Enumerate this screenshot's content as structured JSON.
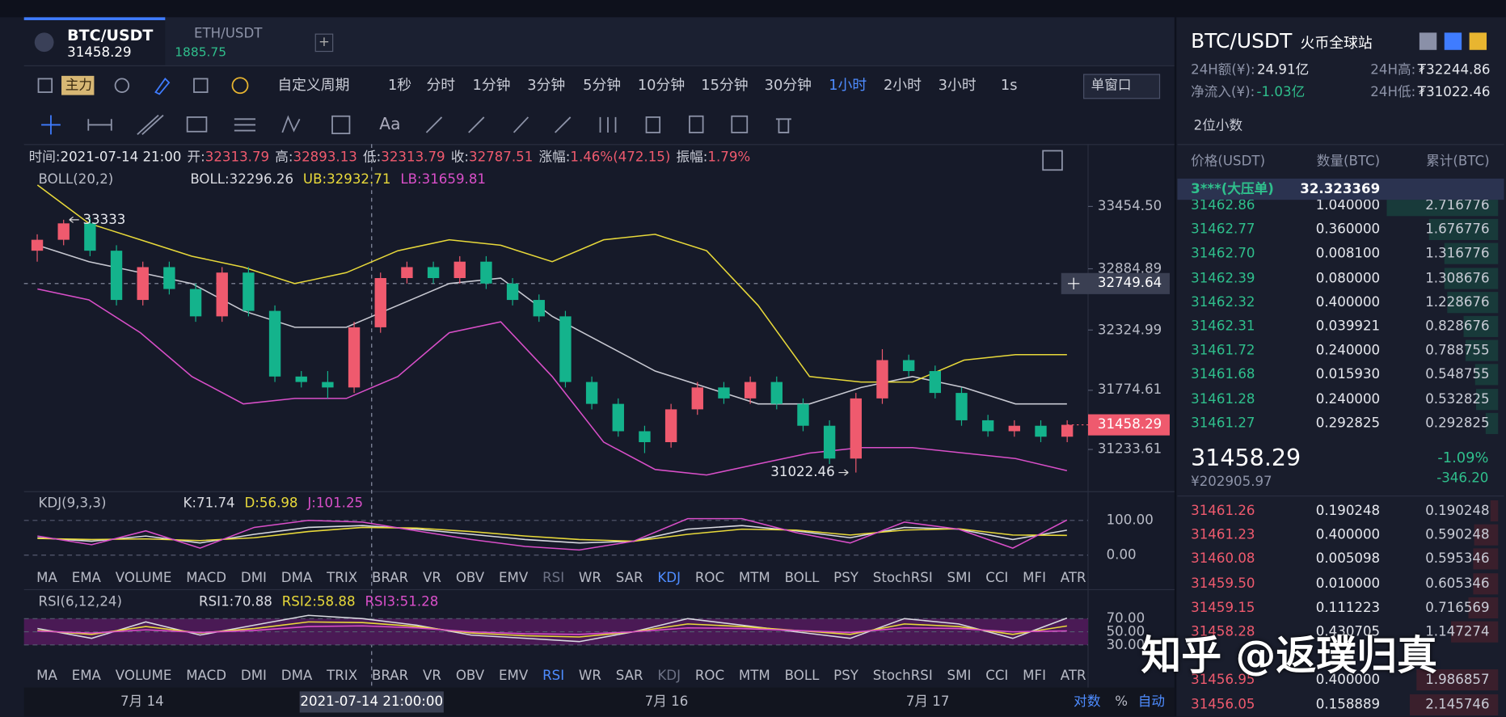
{
  "top_tabs": [
    {
      "symbol": "BTC/USDT",
      "price": "31458.29"
    },
    {
      "symbol": "ETH/USDT",
      "price": "1885.75"
    }
  ],
  "toolbar": {
    "main": "主力",
    "custom_period": "自定义周期",
    "periods": [
      "1秒",
      "分时",
      "1分钟",
      "3分钟",
      "5分钟",
      "10分钟",
      "15分钟",
      "30分钟",
      "1小时",
      "2小时",
      "3小时",
      "1s"
    ],
    "window": "单窗口"
  },
  "tools": {
    "text": "Aa"
  },
  "chart_data": [
    {
      "type": "candlestick",
      "info": [
        {
          "label": "时间:",
          "value": "2021-07-14 21:00"
        },
        {
          "label": "开:",
          "value": "32313.79"
        },
        {
          "label": "高:",
          "value": "32893.13"
        },
        {
          "label": "低:",
          "value": "32313.79"
        },
        {
          "label": "收:",
          "value": "32787.51"
        },
        {
          "label": "涨幅:",
          "value": "1.46%(472.15)"
        },
        {
          "label": "振幅:",
          "value": "1.79%"
        }
      ],
      "legend": {
        "title": "BOLL(20,2)",
        "items": [
          "BOLL:32296.26",
          "UB:32932.71",
          "LB:31659.81"
        ]
      },
      "up_color": "#ef5a6e",
      "down_color": "#14b38c",
      "open": [
        33050,
        33150,
        33300,
        33050,
        32600,
        32900,
        32700,
        32450,
        32850,
        32500,
        31900,
        31850,
        31800,
        32350,
        32800,
        32900,
        32800,
        32950,
        32750,
        32600,
        32450,
        31850,
        31650,
        31400,
        31300,
        31600,
        31800,
        31700,
        31850,
        31650,
        31450,
        31150,
        31700,
        32050,
        31950,
        31750,
        31500,
        31400,
        31450,
        31350
      ],
      "high": [
        33200,
        33333,
        33350,
        33100,
        32950,
        32950,
        32750,
        32900,
        32900,
        32550,
        31950,
        31950,
        32400,
        32850,
        32950,
        32950,
        33000,
        33000,
        32800,
        32650,
        32500,
        31900,
        31700,
        31450,
        31650,
        31850,
        31850,
        31900,
        31900,
        31700,
        31500,
        31750,
        32150,
        32100,
        32000,
        31800,
        31550,
        31500,
        31500,
        31500
      ],
      "low": [
        32950,
        33100,
        33000,
        32550,
        32550,
        32650,
        32400,
        32400,
        32450,
        31850,
        31800,
        31700,
        31750,
        32300,
        32750,
        32750,
        32750,
        32700,
        32550,
        32400,
        31800,
        31600,
        31350,
        31200,
        31250,
        31550,
        31650,
        31650,
        31600,
        31400,
        31100,
        31022.46,
        31650,
        31900,
        31700,
        31450,
        31350,
        31350,
        31300,
        31300
      ],
      "close": [
        33150,
        33300,
        33050,
        32600,
        32900,
        32700,
        32450,
        32850,
        32500,
        31900,
        31850,
        31800,
        32350,
        32800,
        32900,
        32800,
        32950,
        32750,
        32600,
        32450,
        31850,
        31650,
        31400,
        31300,
        31600,
        31800,
        31700,
        31850,
        31650,
        31450,
        31150,
        31700,
        32050,
        31950,
        31750,
        31500,
        31400,
        31450,
        31350,
        31458.29
      ],
      "series": [
        {
          "color": "#c8c9d2",
          "values": [
            33100,
            32950,
            32850,
            32750,
            32500,
            32350,
            32350,
            32550,
            32750,
            32800,
            32450,
            32200,
            31950,
            31800,
            31650,
            31650,
            31800,
            31900,
            31800,
            31650,
            31650
          ]
        },
        {
          "color": "#e8d93a",
          "values": [
            33650,
            33300,
            33150,
            33000,
            32900,
            32750,
            32850,
            33050,
            33150,
            33100,
            32950,
            33150,
            33200,
            33050,
            32550,
            31900,
            31850,
            31850,
            32050,
            32100,
            32100
          ]
        },
        {
          "color": "#d94fc9",
          "values": [
            32700,
            32600,
            32300,
            31900,
            31650,
            31700,
            31700,
            31900,
            32300,
            32400,
            31900,
            31300,
            31050,
            31000,
            31100,
            31200,
            31250,
            31250,
            31200,
            31150,
            31040
          ]
        }
      ],
      "ylim": [
        30865,
        34025
      ],
      "yticks": [
        {
          "value": 33454.5,
          "label": "33454.50"
        },
        {
          "value": 32884.89,
          "label": "32884.89"
        },
        {
          "value": 32324.99,
          "label": "32324.99"
        },
        {
          "value": 31774.61,
          "label": "31774.61"
        },
        {
          "value": 31233.61,
          "label": "31233.61"
        }
      ],
      "crosshair_price": 32749.64
    },
    {
      "type": "line",
      "legend": {
        "title": "KDJ(9,3,3)",
        "items": [
          "K:71.74",
          "D:56.98",
          "J:101.25"
        ]
      },
      "series": [
        {
          "color": "#d8d9e0",
          "values": [
            50,
            40,
            55,
            35,
            60,
            80,
            85,
            75,
            60,
            45,
            35,
            40,
            75,
            85,
            70,
            50,
            80,
            75,
            45,
            71.74
          ]
        },
        {
          "color": "#e8d93a",
          "values": [
            48,
            45,
            47,
            42,
            50,
            68,
            80,
            78,
            68,
            55,
            45,
            40,
            60,
            75,
            72,
            58,
            72,
            76,
            58,
            56.98
          ]
        },
        {
          "color": "#d94fc9",
          "values": [
            55,
            30,
            70,
            20,
            80,
            100,
            95,
            70,
            45,
            25,
            15,
            40,
            105,
            105,
            65,
            35,
            95,
            75,
            20,
            101.25
          ]
        }
      ],
      "ylim": [
        -33,
        133
      ],
      "yticks": [
        {
          "value": 100,
          "label": "100.00"
        },
        {
          "value": 0,
          "label": "0.00"
        }
      ]
    },
    {
      "type": "line",
      "legend": {
        "title": "RSI(6,12,24)",
        "items": [
          "RSI1:70.88",
          "RSI2:58.88",
          "RSI3:51.28"
        ]
      },
      "series": [
        {
          "color": "#d8d9e0",
          "values": [
            55,
            40,
            65,
            45,
            60,
            75,
            70,
            60,
            45,
            40,
            35,
            50,
            70,
            60,
            50,
            40,
            70,
            62,
            40,
            70.88
          ]
        },
        {
          "color": "#e8d93a",
          "values": [
            52,
            46,
            58,
            48,
            55,
            65,
            64,
            58,
            48,
            44,
            42,
            50,
            62,
            58,
            52,
            46,
            62,
            58,
            46,
            58.88
          ]
        },
        {
          "color": "#d94fc9",
          "values": [
            51,
            48,
            53,
            49,
            52,
            58,
            59,
            56,
            50,
            47,
            46,
            50,
            56,
            55,
            52,
            49,
            56,
            55,
            50,
            51.28
          ]
        }
      ],
      "band_color": "#4a1a55",
      "ylim": [
        3,
        82
      ],
      "yticks": [
        {
          "value": 70,
          "label": "70.00"
        },
        {
          "value": 50,
          "label": "50.00"
        },
        {
          "value": 30,
          "label": "30.00"
        }
      ]
    }
  ],
  "indicators": [
    "MA",
    "EMA",
    "VOLUME",
    "MACD",
    "DMI",
    "DMA",
    "TRIX",
    "BRAR",
    "VR",
    "OBV",
    "EMV",
    "RSI",
    "WR",
    "SAR",
    "KDJ",
    "ROC",
    "MTM",
    "BOLL",
    "PSY",
    "StochRSI",
    "SMI",
    "CCI",
    "MFI",
    "ATR"
  ],
  "time_axis": {
    "labels": [
      "7月 14",
      "7月 16",
      "7月 17"
    ],
    "crosshair": "2021-07-14 21:00:00",
    "log": "对数",
    "percent": "%",
    "auto": "自动"
  },
  "market": {
    "symbol": "BTC/USDT",
    "exchange": "火币全球站",
    "stats": [
      {
        "label": "24H额(¥):",
        "value": "24.91亿"
      },
      {
        "label": "24H高:",
        "value": "₮32244.86"
      },
      {
        "label": "净流入(¥):",
        "value": "-1.03亿"
      },
      {
        "label": "24H低:",
        "value": "₮31022.46"
      }
    ]
  },
  "order_book": {
    "precision": "2位小数",
    "headers": [
      "价格(USDT)",
      "数量(BTC)",
      "累计(BTC)"
    ],
    "big_order": {
      "label": "3***(大压单)",
      "qty": "32.323369"
    },
    "asks": [
      [
        "31462.86",
        "1.040000",
        "2.716776"
      ],
      [
        "31462.77",
        "0.360000",
        "1.676776"
      ],
      [
        "31462.70",
        "0.008100",
        "1.316776"
      ],
      [
        "31462.39",
        "0.080000",
        "1.308676"
      ],
      [
        "31462.32",
        "0.400000",
        "1.228676"
      ],
      [
        "31462.31",
        "0.039921",
        "0.828676"
      ],
      [
        "31461.72",
        "0.240000",
        "0.788755"
      ],
      [
        "31461.68",
        "0.015930",
        "0.548755"
      ],
      [
        "31461.28",
        "0.240000",
        "0.532825"
      ],
      [
        "31461.27",
        "0.292825",
        "0.292825"
      ]
    ],
    "last": {
      "price": "31458.29",
      "cny": "¥202905.97",
      "change_pct": "-1.09%",
      "change": "-346.20"
    },
    "bids": [
      [
        "31461.26",
        "0.190248",
        "0.190248"
      ],
      [
        "31461.23",
        "0.400000",
        "0.590248"
      ],
      [
        "31460.08",
        "0.005098",
        "0.595346"
      ],
      [
        "31459.50",
        "0.010000",
        "0.605346"
      ],
      [
        "31459.15",
        "0.111223",
        "0.716569"
      ],
      [
        "31458.28",
        "0.430705",
        "1.147274"
      ],
      [
        "31456.95",
        "0.400000",
        "1.986857"
      ],
      [
        "31456.05",
        "0.158889",
        "2.145746"
      ]
    ]
  },
  "watermark": "知乎 @返璞归真"
}
